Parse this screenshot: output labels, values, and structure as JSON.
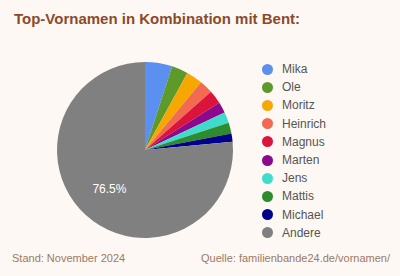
{
  "chart_data": {
    "type": "pie",
    "title": "Top-Vornamen in Kombination mit Bent:",
    "categories": [
      "Mika",
      "Ole",
      "Moritz",
      "Heinrich",
      "Magnus",
      "Marten",
      "Jens",
      "Mattis",
      "Michael",
      "Andere"
    ],
    "values": [
      5,
      3,
      3,
      2.5,
      2.5,
      2,
      2,
      2,
      1.5,
      76.5
    ],
    "colors": [
      "#5b8ff0",
      "#5e9a2a",
      "#f7a800",
      "#f26a4f",
      "#dc143c",
      "#8b0a8b",
      "#3fdccc",
      "#2e8b2e",
      "#00008b",
      "#808080"
    ],
    "data_labels": true,
    "value_labels": [
      null,
      null,
      null,
      null,
      null,
      null,
      null,
      null,
      null,
      "76.5%"
    ],
    "legend": "right",
    "annotations": [
      "Stand: November 2024",
      "Quelle: familienbande24.de/vornamen/"
    ]
  }
}
